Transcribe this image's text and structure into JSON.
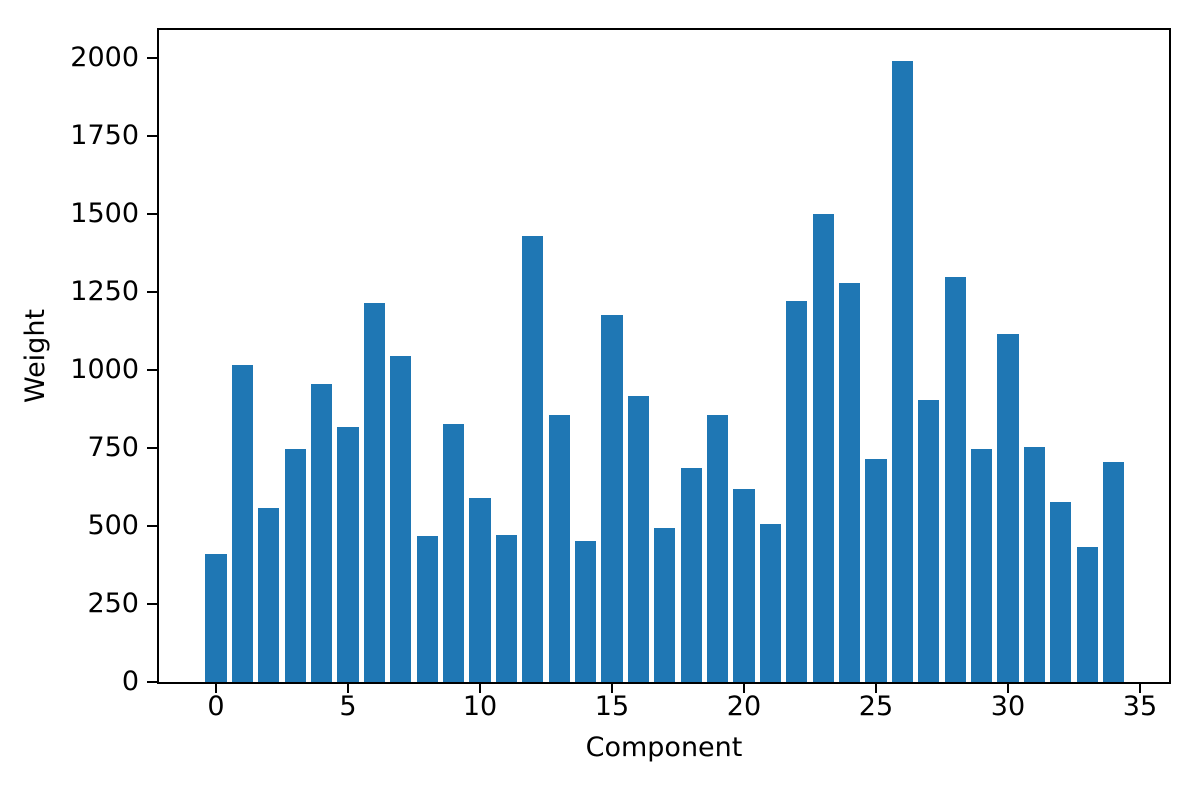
{
  "figure": {
    "background_color": "#ffffff",
    "spine_color": "#000000",
    "text_color": "#000000"
  },
  "chart_data": {
    "type": "bar",
    "title": "",
    "xlabel": "Component",
    "ylabel": "Weight",
    "x": [
      0,
      1,
      2,
      3,
      4,
      5,
      6,
      7,
      8,
      9,
      10,
      11,
      12,
      13,
      14,
      15,
      16,
      17,
      18,
      19,
      20,
      21,
      22,
      23,
      24,
      25,
      26,
      27,
      28,
      29,
      30,
      31,
      32,
      33,
      34
    ],
    "values": [
      410,
      1015,
      558,
      748,
      955,
      818,
      1215,
      1043,
      468,
      828,
      590,
      472,
      1428,
      855,
      452,
      1175,
      915,
      493,
      686,
      855,
      620,
      506,
      1220,
      1500,
      1280,
      714,
      1990,
      905,
      1297,
      748,
      1115,
      752,
      577,
      433,
      705
    ],
    "xticks": [
      0,
      5,
      10,
      15,
      20,
      25,
      30,
      35
    ],
    "yticks": [
      0,
      250,
      500,
      750,
      1000,
      1250,
      1500,
      1750,
      2000
    ],
    "xlim": [
      -2.16,
      36.1
    ],
    "ylim": [
      0,
      2089
    ],
    "bar_color": "#1f77b4",
    "bar_width": 0.8,
    "grid": false,
    "legend": null
  }
}
